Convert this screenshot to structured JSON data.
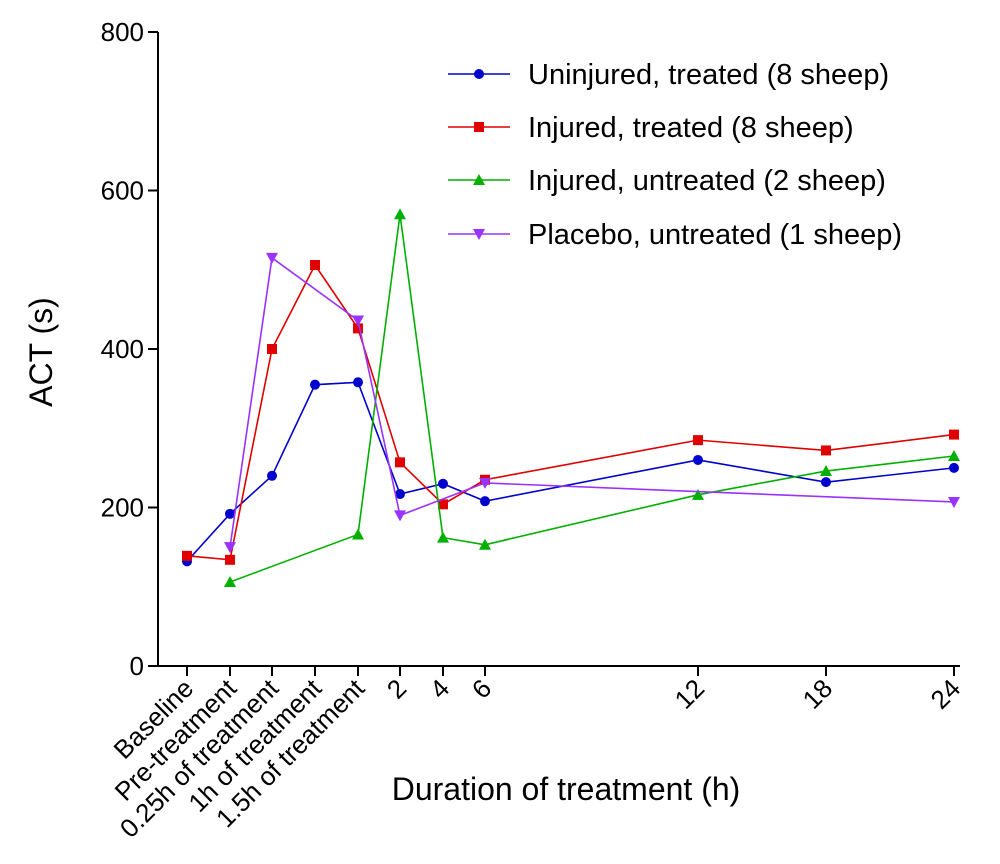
{
  "chart_data": {
    "type": "line",
    "xlabel": "Duration of treatment (h)",
    "ylabel": "ACT (s)",
    "ylim": [
      0,
      800
    ],
    "yticks": [
      0,
      200,
      400,
      600,
      800
    ],
    "x_tick_labels": [
      "Baseline",
      "Pre-treatment",
      "0.25h of treatment",
      "1h of treatment",
      "1.5h of treatment",
      "2",
      "4",
      "6",
      "12",
      "18",
      "24"
    ],
    "legend_position": "top-right",
    "series": [
      {
        "name": "Uninjured, treated (8 sheep)",
        "color": "#0000cc",
        "marker": "circle",
        "values": [
          132,
          192,
          240,
          355,
          358,
          217,
          230,
          208,
          260,
          232,
          250
        ]
      },
      {
        "name": "Injured, treated (8 sheep)",
        "color": "#e00000",
        "marker": "square",
        "values": [
          139,
          134,
          400,
          506,
          426,
          257,
          204,
          235,
          285,
          272,
          292
        ]
      },
      {
        "name": "Injured, untreated (2 sheep)",
        "color": "#00b000",
        "marker": "triangle-up",
        "values": [
          null,
          106,
          null,
          null,
          166,
          570,
          162,
          153,
          216,
          246,
          265
        ]
      },
      {
        "name": "Placebo, untreated (1 sheep)",
        "color": "#9933ff",
        "marker": "triangle-down",
        "values": [
          null,
          150,
          515,
          null,
          436,
          190,
          null,
          231,
          null,
          null,
          207
        ]
      }
    ]
  }
}
